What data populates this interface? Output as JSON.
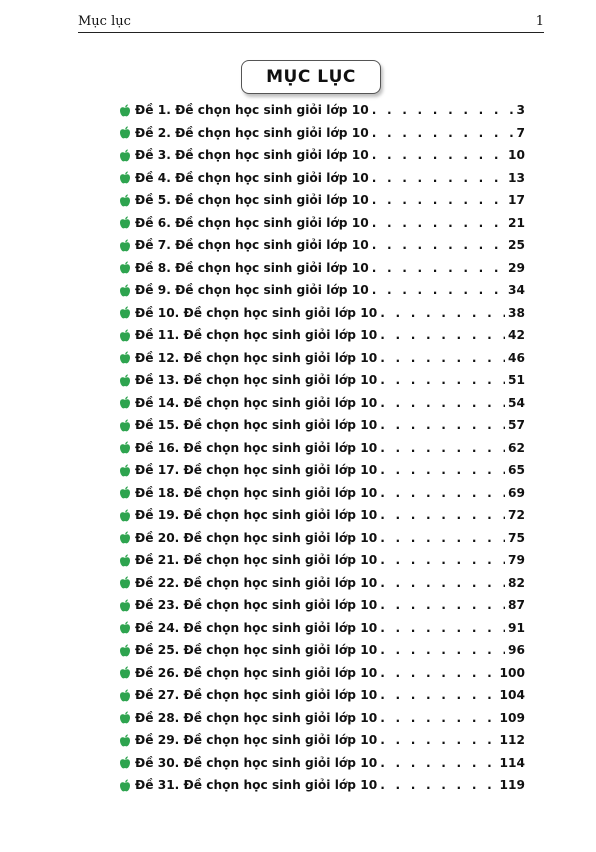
{
  "header": {
    "left": "Mục lục",
    "right": "1"
  },
  "title": "MỤC LỤC",
  "icon": "apple-icon",
  "accent_color": "#2ea44f",
  "entries": [
    {
      "label": "Đề 1. Đề chọn học sinh giỏi lớp 10",
      "page": "3"
    },
    {
      "label": "Đề 2. Đề chọn học sinh giỏi lớp 10",
      "page": "7"
    },
    {
      "label": "Đề 3. Đề chọn học sinh giỏi lớp 10",
      "page": "10"
    },
    {
      "label": "Đề 4. Đề chọn học sinh giỏi lớp 10",
      "page": "13"
    },
    {
      "label": "Đề 5. Đề chọn học sinh giỏi lớp 10",
      "page": "17"
    },
    {
      "label": "Đề 6. Đề chọn học sinh giỏi lớp 10",
      "page": "21"
    },
    {
      "label": "Đề 7. Đề chọn học sinh giỏi lớp 10",
      "page": "25"
    },
    {
      "label": "Đề 8. Đề chọn học sinh giỏi lớp 10",
      "page": "29"
    },
    {
      "label": "Đề 9. Đề chọn học sinh giỏi lớp 10",
      "page": "34"
    },
    {
      "label": "Đề 10. Đề chọn học sinh giỏi lớp 10",
      "page": "38"
    },
    {
      "label": "Đề 11. Đề chọn học sinh giỏi lớp 10",
      "page": "42"
    },
    {
      "label": "Đề 12. Đề chọn học sinh giỏi lớp 10",
      "page": "46"
    },
    {
      "label": "Đề 13. Đề chọn học sinh giỏi lớp 10",
      "page": "51"
    },
    {
      "label": "Đề 14. Đề chọn học sinh giỏi lớp 10",
      "page": "54"
    },
    {
      "label": "Đề 15. Đề chọn học sinh giỏi lớp 10",
      "page": "57"
    },
    {
      "label": "Đề 16. Đề chọn học sinh giỏi lớp 10",
      "page": "62"
    },
    {
      "label": "Đề 17. Đề chọn học sinh giỏi lớp 10",
      "page": "65"
    },
    {
      "label": "Đề 18. Đề chọn học sinh giỏi lớp 10",
      "page": "69"
    },
    {
      "label": "Đề 19. Đề chọn học sinh giỏi lớp 10",
      "page": "72"
    },
    {
      "label": "Đề 20. Đề chọn học sinh giỏi lớp 10",
      "page": "75"
    },
    {
      "label": "Đề 21. Đề chọn học sinh giỏi lớp 10",
      "page": "79"
    },
    {
      "label": "Đề 22. Đề chọn học sinh giỏi lớp 10",
      "page": "82"
    },
    {
      "label": "Đề 23. Đề chọn học sinh giỏi lớp 10",
      "page": "87"
    },
    {
      "label": "Đề 24. Đề chọn học sinh giỏi lớp 10",
      "page": "91"
    },
    {
      "label": "Đề 25. Đề chọn học sinh giỏi lớp 10",
      "page": "96"
    },
    {
      "label": "Đề 26. Đề chọn học sinh giỏi lớp 10",
      "page": "100"
    },
    {
      "label": "Đề 27. Đề chọn học sinh giỏi lớp 10",
      "page": "104"
    },
    {
      "label": "Đề 28. Đề chọn học sinh giỏi lớp 10",
      "page": "109"
    },
    {
      "label": "Đề 29. Đề chọn học sinh giỏi lớp 10",
      "page": "112"
    },
    {
      "label": "Đề 30. Đề chọn học sinh giỏi lớp 10",
      "page": "114"
    },
    {
      "label": "Đề 31. Đề chọn học sinh giỏi lớp 10",
      "page": "119"
    }
  ]
}
